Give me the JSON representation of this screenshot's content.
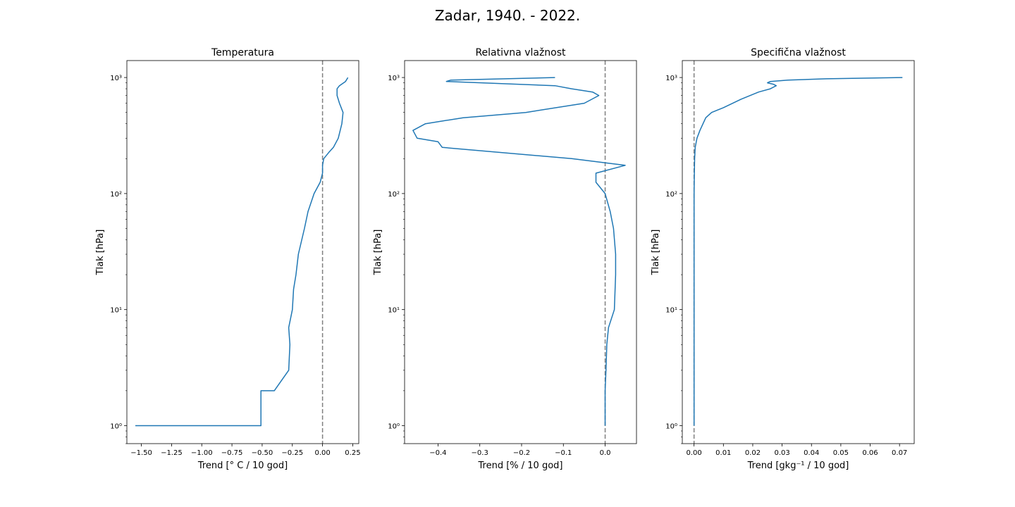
{
  "figure": {
    "title": "Zadar, 1940. - 2022."
  },
  "colors": {
    "line": "#1f77b4",
    "zero_line": "#808080"
  },
  "chart_data": [
    {
      "type": "line",
      "title": "Temperatura",
      "xlabel": "Trend [° C / 10 god]",
      "ylabel": "Tlak [hPa]",
      "yscale": "log",
      "yinvert": true,
      "xlim": [
        -1.62,
        0.3
      ],
      "ylim": [
        1400,
        0.7
      ],
      "xticks": [
        -1.5,
        -1.25,
        -1.0,
        -0.75,
        -0.5,
        -0.25,
        0.0,
        0.25
      ],
      "xtick_labels": [
        "−1.50",
        "−1.25",
        "−1.00",
        "−0.75",
        "−0.50",
        "−0.25",
        "0.00",
        "0.25"
      ],
      "yticks": [
        1,
        10,
        100,
        1000
      ],
      "ytick_labels": [
        "10⁰",
        "10¹",
        "10²",
        "10³"
      ],
      "grid": false,
      "zero_line": true,
      "series": [
        {
          "x": [
            0.21,
            0.19,
            0.14,
            0.12,
            0.12,
            0.14,
            0.17,
            0.16,
            0.13,
            0.09,
            0.05,
            0.01,
            0.0,
            0.0,
            -0.02,
            -0.07,
            -0.12,
            -0.15,
            -0.2,
            -0.22,
            -0.24,
            -0.25,
            -0.28,
            -0.27,
            -0.28,
            -0.4,
            -0.51,
            -0.51,
            -0.73,
            -1.55
          ],
          "y": [
            1000,
            925,
            850,
            800,
            700,
            600,
            500,
            400,
            300,
            250,
            225,
            200,
            175,
            150,
            125,
            100,
            70,
            50,
            30,
            20,
            15,
            10,
            7,
            5,
            3,
            2,
            2,
            1,
            1,
            1
          ]
        }
      ]
    },
    {
      "type": "line",
      "title": "Relativna vlažnost",
      "xlabel": "Trend [% / 10 god]",
      "ylabel": "Tlak [hPa]",
      "yscale": "log",
      "yinvert": true,
      "xlim": [
        -0.48,
        0.075
      ],
      "ylim": [
        1400,
        0.7
      ],
      "xticks": [
        -0.4,
        -0.3,
        -0.2,
        -0.1,
        0.0
      ],
      "xtick_labels": [
        "−0.4",
        "−0.3",
        "−0.2",
        "−0.1",
        "0.0"
      ],
      "yticks": [
        1,
        10,
        100,
        1000
      ],
      "ytick_labels": [
        "10⁰",
        "10¹",
        "10²",
        "10³"
      ],
      "grid": false,
      "zero_line": true,
      "series": [
        {
          "x": [
            -0.12,
            -0.37,
            -0.38,
            -0.12,
            -0.08,
            -0.03,
            -0.015,
            -0.05,
            -0.19,
            -0.34,
            -0.43,
            -0.46,
            -0.45,
            -0.4,
            -0.39,
            -0.08,
            0.048,
            -0.022,
            -0.022,
            0.0,
            0.012,
            0.02,
            0.025,
            0.025,
            0.022,
            0.008,
            0.004,
            0.002,
            0.0,
            0.0
          ],
          "y": [
            1000,
            950,
            925,
            850,
            800,
            750,
            700,
            600,
            500,
            450,
            400,
            350,
            300,
            280,
            250,
            200,
            175,
            150,
            125,
            100,
            70,
            50,
            30,
            20,
            10,
            7,
            5,
            3,
            2,
            1
          ]
        }
      ]
    },
    {
      "type": "line",
      "title": "Specifična vlažnost",
      "xlabel": "Trend [gkg⁻¹ / 10 god]",
      "ylabel": "Tlak [hPa]",
      "yscale": "log",
      "yinvert": true,
      "xlim": [
        -0.004,
        0.075
      ],
      "ylim": [
        1400,
        0.7
      ],
      "xticks": [
        0.0,
        0.01,
        0.02,
        0.03,
        0.04,
        0.05,
        0.06,
        0.07
      ],
      "xtick_labels": [
        "0.00",
        "0.01",
        "0.02",
        "0.03",
        "0.04",
        "0.05",
        "0.06",
        "0.07"
      ],
      "yticks": [
        1,
        10,
        100,
        1000
      ],
      "ytick_labels": [
        "10⁰",
        "10¹",
        "10²",
        "10³"
      ],
      "grid": false,
      "zero_line": true,
      "series": [
        {
          "x": [
            0.071,
            0.045,
            0.032,
            0.026,
            0.025,
            0.027,
            0.028,
            0.026,
            0.022,
            0.016,
            0.01,
            0.006,
            0.004,
            0.002,
            0.001,
            0.0004,
            0.0002,
            0.0001,
            0.0,
            0.0,
            0.0,
            0.0
          ],
          "y": [
            1000,
            975,
            950,
            925,
            900,
            875,
            850,
            800,
            750,
            650,
            550,
            500,
            450,
            350,
            300,
            250,
            200,
            150,
            100,
            50,
            10,
            1
          ]
        }
      ]
    }
  ]
}
